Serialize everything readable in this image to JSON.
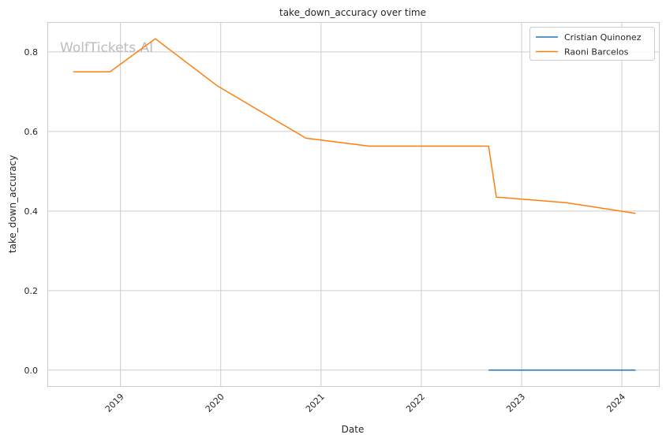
{
  "chart_data": {
    "type": "line",
    "title": "take_down_accuracy over time",
    "xlabel": "Date",
    "ylabel": "take_down_accuracy",
    "watermark": "WolfTickets.AI",
    "xlim": [
      "2018-04-10",
      "2024-05-15"
    ],
    "ylim": [
      -0.04,
      0.875
    ],
    "x_ticks": [
      "2019",
      "2020",
      "2021",
      "2022",
      "2023",
      "2024"
    ],
    "y_ticks": [
      "0.0",
      "0.2",
      "0.4",
      "0.6",
      "0.8"
    ],
    "grid": true,
    "legend_placement": "top-right",
    "series": [
      {
        "name": "Cristian Quinonez",
        "color": "#1f77b4",
        "x": [
          "2022-09-03",
          "2024-02-20"
        ],
        "y": [
          0.0,
          0.0
        ]
      },
      {
        "name": "Raoni Barcelos",
        "color": "#ff7f0e",
        "x": [
          "2018-07-13",
          "2018-11-24",
          "2019-05-08",
          "2019-12-21",
          "2020-11-07",
          "2021-06-26",
          "2022-09-03",
          "2022-10-01",
          "2023-06-12",
          "2024-02-20"
        ],
        "y": [
          0.75,
          0.75,
          0.833,
          0.714,
          0.583,
          0.563,
          0.563,
          0.435,
          0.421,
          0.394
        ]
      }
    ]
  }
}
